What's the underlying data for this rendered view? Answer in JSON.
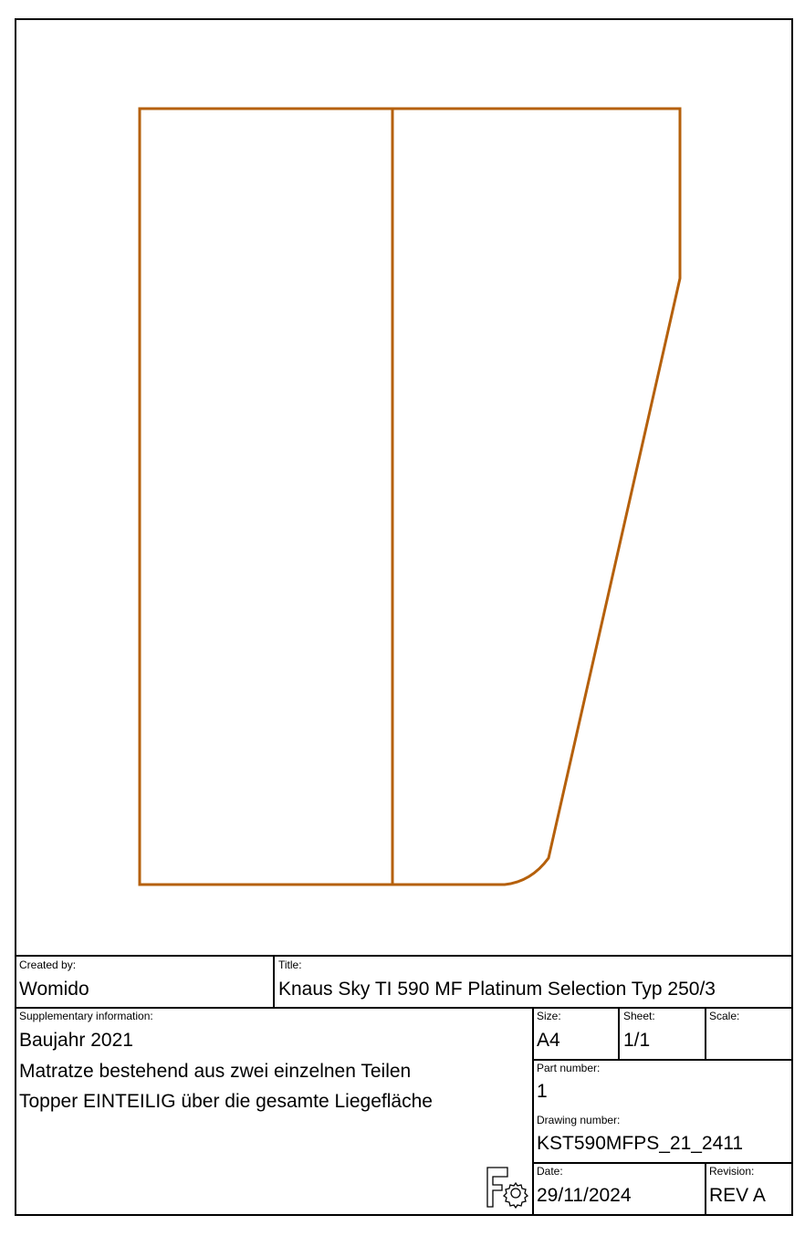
{
  "drawing": {
    "line_color": "#b5600b",
    "border_color": "#000000"
  },
  "title_block": {
    "created_by": {
      "label": "Created by:",
      "value": "Womido"
    },
    "title": {
      "label": "Title:",
      "value": "Knaus Sky TI 590 MF Platinum Selection Typ 250/3"
    },
    "supplementary": {
      "label": "Supplementary information:",
      "lines": [
        "Baujahr 2021",
        "Matratze bestehend aus zwei einzelnen Teilen",
        "Topper EINTEILIG über die gesamte Liegefläche"
      ]
    },
    "size": {
      "label": "Size:",
      "value": "A4"
    },
    "sheet": {
      "label": "Sheet:",
      "value": "1/1"
    },
    "scale": {
      "label": "Scale:",
      "value": ""
    },
    "part_number": {
      "label": "Part number:",
      "value": "1"
    },
    "drawing_number": {
      "label": "Drawing number:",
      "value": "KST590MFPS_21_2411"
    },
    "date": {
      "label": "Date:",
      "value": "29/11/2024"
    },
    "revision": {
      "label": "Revision:",
      "value": "REV A"
    },
    "logo": "freecad-logo-icon"
  }
}
